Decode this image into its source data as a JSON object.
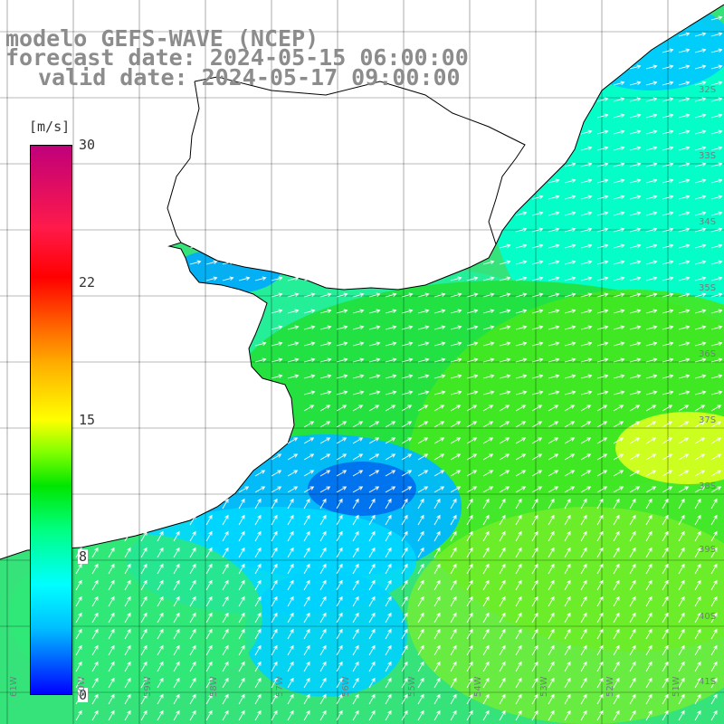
{
  "title": {
    "line1": "modelo GEFS-WAVE (NCEP)",
    "line2": "forecast date: 2024-05-15 06:00:00",
    "line3": "valid date: 2024-05-17 09:00:00"
  },
  "colorbar": {
    "unit": "[m/s]",
    "ticks": [
      "30",
      "22",
      "15",
      "8",
      "0"
    ],
    "tick_values": [
      30,
      22,
      15,
      8,
      0
    ],
    "range": [
      0,
      30
    ],
    "colors": [
      "#0000ff",
      "#00bfff",
      "#00ffff",
      "#00ff80",
      "#00e600",
      "#7fff00",
      "#ffff00",
      "#ff7000",
      "#ff0000",
      "#c0007a"
    ]
  },
  "map": {
    "land_color": "#ffffff",
    "coastline_color": "#000000",
    "grid_color": "#000000",
    "lat_labels": [
      "32S",
      "33S",
      "34S",
      "35S",
      "36S",
      "37S",
      "38S",
      "39S",
      "40S",
      "41S"
    ],
    "lon_labels": [
      "61W",
      "60W",
      "59W",
      "58W",
      "57W",
      "56W",
      "55W",
      "54W",
      "53W",
      "52W",
      "51W"
    ]
  }
}
